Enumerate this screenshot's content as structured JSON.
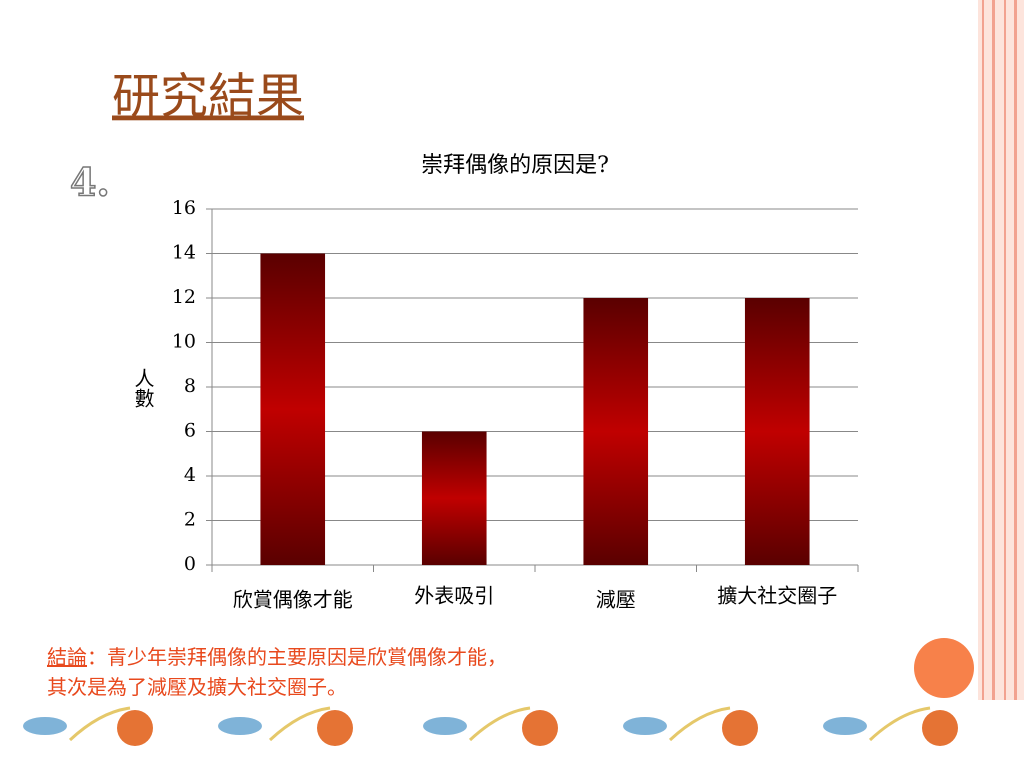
{
  "slide_title": "研究結果",
  "item_number": "4.",
  "chart_data": {
    "type": "bar",
    "title": "崇拜偶像的原因是?",
    "y_label": "人數",
    "categories": [
      "欣賞偶像才能",
      "外表吸引",
      "減壓",
      "擴大社交圈子"
    ],
    "values": [
      14,
      6,
      12,
      12
    ],
    "color": "#c00000",
    "ylim": [
      0,
      16
    ],
    "yticks": [
      0,
      2,
      4,
      6,
      8,
      10,
      12,
      14,
      16
    ],
    "grid": true
  },
  "conclusion": {
    "label": "結論",
    "line1": "：青少年崇拜偶像的主要原因是欣賞偶像才能，",
    "line2": "其次是為了減壓及擴大社交圈子。"
  }
}
